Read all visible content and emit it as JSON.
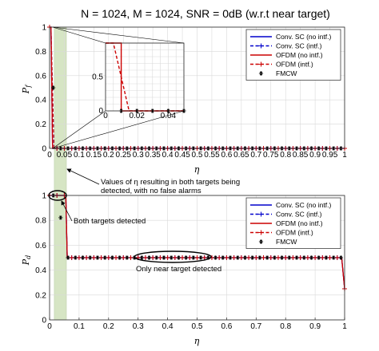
{
  "chart_data": [
    {
      "type": "line",
      "title": "N = 1024, M = 1024, SNR = 0dB (w.r.t near target)",
      "xlabel": "η",
      "ylabel": "Pf",
      "xlim": [
        0,
        1
      ],
      "ylim": [
        0,
        1
      ],
      "xticks": [
        "0",
        "0.05",
        "0.1",
        "0.15",
        "0.2",
        "0.25",
        "0.3",
        "0.35",
        "0.4",
        "0.45",
        "0.5",
        "0.55",
        "0.6",
        "0.65",
        "0.7",
        "0.75",
        "0.8",
        "0.85",
        "0.9",
        "0.95",
        "1"
      ],
      "yticks": [
        "0",
        "0.2",
        "0.4",
        "0.6",
        "0.8",
        "1"
      ],
      "grid": true,
      "legend_position": "top-right",
      "series": [
        {
          "name": "Conv. SC (no intf.)",
          "color": "#0000cc",
          "style": "solid",
          "marker": "none",
          "x": [
            0,
            0.005,
            0.01,
            1
          ],
          "y": [
            1,
            1,
            0,
            0
          ]
        },
        {
          "name": "Conv. SC (intf.)",
          "color": "#0000cc",
          "style": "dashed",
          "marker": "plus",
          "x": [
            0,
            0.005,
            0.015,
            1
          ],
          "y": [
            1,
            1,
            0,
            0
          ]
        },
        {
          "name": "OFDM (no intf.)",
          "color": "#cc0000",
          "style": "solid",
          "marker": "none",
          "x": [
            0,
            0.005,
            0.01,
            1
          ],
          "y": [
            1,
            1,
            0,
            0
          ]
        },
        {
          "name": "OFDM (intf.)",
          "color": "#cc0000",
          "style": "dashed",
          "marker": "plus",
          "x": [
            0,
            0.005,
            0.015,
            1
          ],
          "y": [
            1,
            1,
            0,
            0
          ]
        },
        {
          "name": "FMCW",
          "color": "#000000",
          "style": "none",
          "marker": "star",
          "x": [
            0,
            0.025,
            1
          ],
          "y": [
            1,
            0,
            0
          ]
        }
      ],
      "inset": {
        "xlim": [
          0,
          0.05
        ],
        "ylim": [
          0,
          1
        ],
        "xticks": [
          "0",
          "0.02",
          "0.04"
        ],
        "yticks": [
          "0",
          "0.5"
        ],
        "series": [
          {
            "name": "Conv. SC (no intf.)",
            "x": [
              0,
              0.01,
              0.01,
              0.05
            ],
            "y": [
              1,
              1,
              0,
              0
            ]
          },
          {
            "name": "OFDM (intf.)",
            "x": [
              0,
              0.005,
              0.015,
              0.05
            ],
            "y": [
              1,
              1,
              0,
              0
            ]
          },
          {
            "name": "FMCW",
            "x": [
              0.01,
              0.02,
              0.03,
              0.04,
              0.05
            ],
            "y": [
              0,
              0,
              0,
              0,
              0
            ]
          }
        ]
      }
    },
    {
      "type": "line",
      "xlabel": "η",
      "ylabel": "Pd",
      "xlim": [
        0,
        1
      ],
      "ylim": [
        0,
        1
      ],
      "xticks": [
        "0",
        "0.1",
        "0.2",
        "0.3",
        "0.4",
        "0.5",
        "0.6",
        "0.7",
        "0.8",
        "0.9",
        "1"
      ],
      "yticks": [
        "0",
        "0.2",
        "0.4",
        "0.6",
        "0.8",
        "1"
      ],
      "grid": true,
      "legend_position": "top-right",
      "series": [
        {
          "name": "Conv. SC (no intf.)",
          "color": "#0000cc",
          "style": "solid",
          "marker": "none",
          "x": [
            0,
            0.055,
            0.06,
            0.99,
            1
          ],
          "y": [
            1,
            1,
            0.5,
            0.5,
            0.25
          ]
        },
        {
          "name": "Conv. SC (intf.)",
          "color": "#0000cc",
          "style": "dashed",
          "marker": "plus",
          "x": [
            0,
            0.055,
            0.06,
            0.99,
            1
          ],
          "y": [
            1,
            1,
            0.5,
            0.5,
            0.25
          ]
        },
        {
          "name": "OFDM (no intf.)",
          "color": "#cc0000",
          "style": "solid",
          "marker": "none",
          "x": [
            0,
            0.055,
            0.06,
            0.99,
            1
          ],
          "y": [
            1,
            1,
            0.5,
            0.5,
            0.25
          ]
        },
        {
          "name": "OFDM (intf.)",
          "color": "#cc0000",
          "style": "dashed",
          "marker": "plus",
          "x": [
            0,
            0.055,
            0.06,
            0.99,
            1
          ],
          "y": [
            1,
            1,
            0.5,
            0.5,
            0.25
          ]
        },
        {
          "name": "FMCW",
          "color": "#000000",
          "style": "none",
          "marker": "star",
          "x": [
            0,
            0.025,
            0.06,
            1
          ],
          "y": [
            1,
            1,
            0.5,
            0.5
          ]
        }
      ]
    }
  ],
  "highlight": {
    "x_range": [
      0.016,
      0.057
    ],
    "color": "#d6e5c4"
  },
  "annotations": {
    "values_line1": "Values of η resulting in both targets being",
    "values_line2": "detected, with no false alarms",
    "both_detected": "Both targets detected",
    "near_only": "Only near target detected"
  }
}
